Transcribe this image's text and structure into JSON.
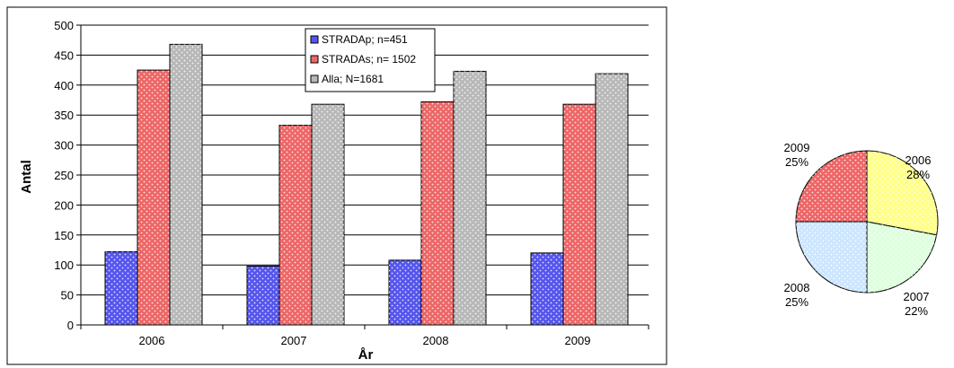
{
  "chart_data": [
    {
      "type": "bar",
      "categories": [
        "2006",
        "2007",
        "2008",
        "2009"
      ],
      "series": [
        {
          "name": "STRADAp; n=451",
          "values": [
            122,
            98,
            108,
            120
          ],
          "color": "#5555ee"
        },
        {
          "name": "STRADAs; n= 1502",
          "values": [
            425,
            333,
            372,
            368
          ],
          "color": "#ee6666"
        },
        {
          "name": "Alla; N=1681",
          "values": [
            468,
            368,
            423,
            419
          ],
          "color": "#b8b8b8"
        }
      ],
      "xlabel": "År",
      "ylabel": "Antal",
      "ylim": [
        0,
        500
      ],
      "yticks": [
        0,
        50,
        100,
        150,
        200,
        250,
        300,
        350,
        400,
        450,
        500
      ],
      "grid": true,
      "legend": "top-center"
    },
    {
      "type": "pie",
      "slices": [
        {
          "label": "2006",
          "percent_label": "28%",
          "value": 28,
          "color": "#ffff88"
        },
        {
          "label": "2007",
          "percent_label": "22%",
          "value": 22,
          "color": "#ddffdd"
        },
        {
          "label": "2008",
          "percent_label": "25%",
          "value": 25,
          "color": "#cce6ff"
        },
        {
          "label": "2009",
          "percent_label": "25%",
          "value": 25,
          "color": "#ee6666"
        }
      ]
    }
  ]
}
